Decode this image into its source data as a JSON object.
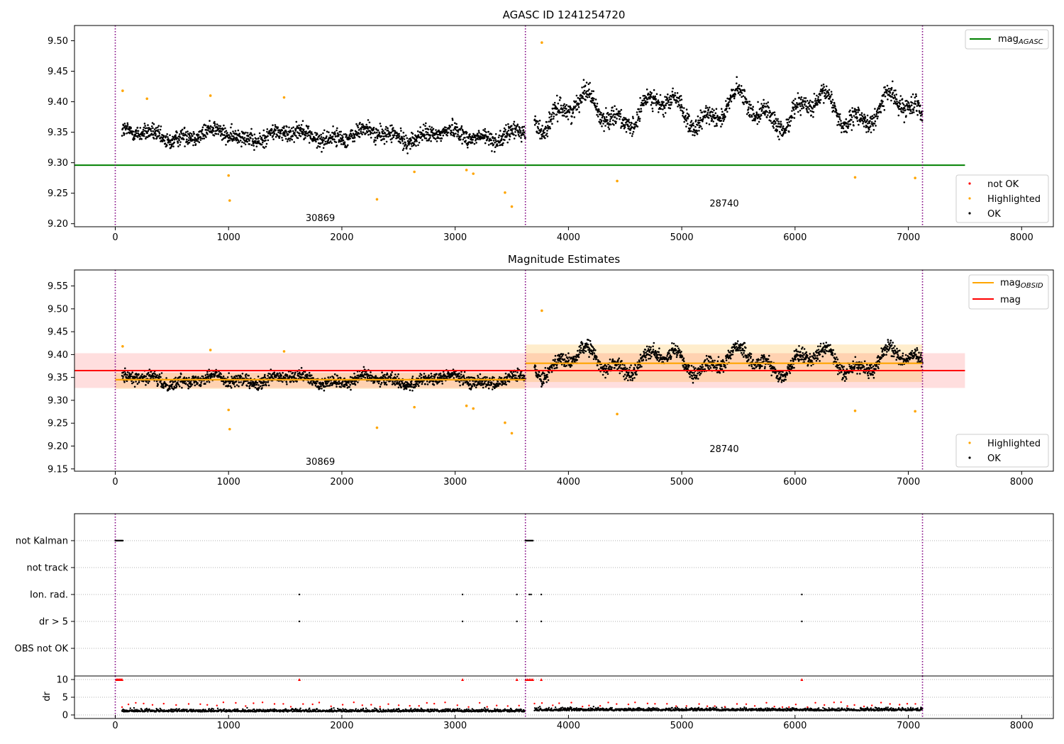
{
  "chart_data": [
    {
      "type": "scatter",
      "title": "AGASC ID 1241254720",
      "xlim": [
        -360,
        8280
      ],
      "ylim": [
        9.195,
        9.525
      ],
      "x_ticks": [
        "0",
        "1000",
        "2000",
        "3000",
        "4000",
        "5000",
        "6000",
        "7000",
        "8000"
      ],
      "y_ticks": [
        "9.20",
        "9.25",
        "9.30",
        "9.35",
        "9.40",
        "9.45",
        "9.50"
      ],
      "obsid_boundaries": [
        0,
        3620,
        7125
      ],
      "obsid_labels": [
        {
          "text": "30869",
          "x": 1810,
          "y": 9.209
        },
        {
          "text": "28740",
          "x": 5375,
          "y": 9.233
        }
      ],
      "legend_top": {
        "position": "top-right",
        "entries": [
          {
            "name": "mag",
            "sub": "AGASC",
            "color": "#008000"
          }
        ]
      },
      "legend_bottom": {
        "position": "bottom-right",
        "entries": [
          {
            "name": "not OK",
            "color": "#ff0000"
          },
          {
            "name": "Highlighted",
            "color": "#ffa500"
          },
          {
            "name": "OK",
            "color": "#000000"
          }
        ]
      },
      "reference_lines": [
        {
          "name": "mag AGASC",
          "y": 9.296,
          "x": [
            -360,
            7500
          ],
          "color": "#008000"
        }
      ],
      "segments": [
        {
          "x": [
            60,
            3620
          ],
          "mean": 9.345,
          "amp": 0.012,
          "noise": 0.018
        },
        {
          "x": [
            3700,
            7125
          ],
          "mean": 9.385,
          "amp": 0.035,
          "noise": 0.02
        }
      ],
      "highlighted_points": [
        {
          "x": 65,
          "y": 9.418
        },
        {
          "x": 280,
          "y": 9.405
        },
        {
          "x": 840,
          "y": 9.41
        },
        {
          "x": 1000,
          "y": 9.279
        },
        {
          "x": 1010,
          "y": 9.238
        },
        {
          "x": 1490,
          "y": 9.407
        },
        {
          "x": 2310,
          "y": 9.24
        },
        {
          "x": 2640,
          "y": 9.285
        },
        {
          "x": 3100,
          "y": 9.288
        },
        {
          "x": 3160,
          "y": 9.282
        },
        {
          "x": 3440,
          "y": 9.251
        },
        {
          "x": 3500,
          "y": 9.228
        },
        {
          "x": 3765,
          "y": 9.497
        },
        {
          "x": 4430,
          "y": 9.27
        },
        {
          "x": 6530,
          "y": 9.276
        },
        {
          "x": 7060,
          "y": 9.275
        }
      ]
    },
    {
      "type": "scatter",
      "title": "Magnitude Estimates",
      "xlim": [
        -360,
        8280
      ],
      "ylim": [
        9.145,
        9.585
      ],
      "x_ticks": [
        "0",
        "1000",
        "2000",
        "3000",
        "4000",
        "5000",
        "6000",
        "7000",
        "8000"
      ],
      "y_ticks": [
        "9.15",
        "9.20",
        "9.25",
        "9.30",
        "9.35",
        "9.40",
        "9.45",
        "9.50",
        "9.55"
      ],
      "obsid_boundaries": [
        0,
        3620,
        7125
      ],
      "obsid_labels": [
        {
          "text": "30869",
          "x": 1810,
          "y": 9.165
        },
        {
          "text": "28740",
          "x": 5375,
          "y": 9.193
        }
      ],
      "legend_top": {
        "position": "top-right",
        "entries": [
          {
            "name": "mag",
            "sub": "OBSID",
            "color": "#ffa500"
          },
          {
            "name": "mag",
            "sub": "",
            "color": "#ff0000"
          }
        ]
      },
      "legend_bottom": {
        "position": "bottom-right",
        "entries": [
          {
            "name": "Highlighted",
            "color": "#ffa500"
          },
          {
            "name": "OK",
            "color": "#000000"
          }
        ]
      },
      "reference_lines": [
        {
          "name": "mag",
          "y": 9.365,
          "x": [
            -360,
            7500
          ],
          "color": "#ff0000"
        }
      ],
      "bands": [
        {
          "x": [
            -360,
            7500
          ],
          "y": [
            9.327,
            9.403
          ],
          "color": "#ff0000",
          "opacity": 0.13
        },
        {
          "x": [
            0,
            3620
          ],
          "y": [
            9.325,
            9.36
          ],
          "color": "#ffa500",
          "opacity": 0.2
        },
        {
          "x": [
            3620,
            7125
          ],
          "y": [
            9.34,
            9.422
          ],
          "color": "#ffa500",
          "opacity": 0.2
        }
      ],
      "obsid_lines": [
        {
          "x": [
            0,
            3620
          ],
          "y": 9.345,
          "color": "#ffa500"
        },
        {
          "x": [
            3620,
            7125
          ],
          "y": 9.381,
          "color": "#ffa500"
        }
      ],
      "segments": [
        {
          "x": [
            60,
            3620
          ],
          "mean": 9.345,
          "amp": 0.012,
          "noise": 0.018
        },
        {
          "x": [
            3700,
            7125
          ],
          "mean": 9.385,
          "amp": 0.035,
          "noise": 0.02
        }
      ],
      "highlighted_points": [
        {
          "x": 65,
          "y": 9.418
        },
        {
          "x": 840,
          "y": 9.41
        },
        {
          "x": 1000,
          "y": 9.279
        },
        {
          "x": 1010,
          "y": 9.237
        },
        {
          "x": 1490,
          "y": 9.407
        },
        {
          "x": 2310,
          "y": 9.24
        },
        {
          "x": 2640,
          "y": 9.285
        },
        {
          "x": 3100,
          "y": 9.288
        },
        {
          "x": 3160,
          "y": 9.282
        },
        {
          "x": 3440,
          "y": 9.251
        },
        {
          "x": 3500,
          "y": 9.228
        },
        {
          "x": 3765,
          "y": 9.496
        },
        {
          "x": 4430,
          "y": 9.27
        },
        {
          "x": 6530,
          "y": 9.277
        },
        {
          "x": 7060,
          "y": 9.276
        }
      ]
    },
    {
      "type": "scatter",
      "title": "",
      "xlim": [
        -360,
        8280
      ],
      "categories": [
        "not Kalman",
        "not track",
        "Ion. rad.",
        "dr > 5",
        "OBS not OK"
      ],
      "obsid_boundaries": [
        0,
        3620,
        7125
      ],
      "flag_markers": [
        {
          "row": "not Kalman",
          "x_start": 0,
          "x_end": 70
        },
        {
          "row": "not Kalman",
          "x_start": 3620,
          "x_end": 3690
        },
        {
          "row": "Ion. rad.",
          "x": [
            1625,
            3065,
            3545,
            3655,
            3670,
            3760,
            6060
          ]
        },
        {
          "row": "dr > 5",
          "x": [
            1625,
            3065,
            3545,
            3760,
            6060
          ]
        }
      ]
    },
    {
      "type": "scatter",
      "title": "",
      "ylabel": "dr",
      "xlim": [
        -360,
        8280
      ],
      "ylim": [
        -1,
        11
      ],
      "x_ticks": [
        "0",
        "1000",
        "2000",
        "3000",
        "4000",
        "5000",
        "6000",
        "7000",
        "8000"
      ],
      "y_ticks": [
        "0",
        "5",
        "10"
      ],
      "obsid_boundaries": [
        0,
        3620,
        7125
      ],
      "segments": [
        {
          "x": [
            60,
            3620
          ],
          "mean": 1.1
        },
        {
          "x": [
            3700,
            7125
          ],
          "mean": 1.4
        }
      ],
      "capped_points": [
        10,
        20,
        30,
        40,
        50,
        60,
        1625,
        3065,
        3545,
        3625,
        3640,
        3655,
        3670,
        3685,
        3760,
        6060
      ]
    }
  ]
}
